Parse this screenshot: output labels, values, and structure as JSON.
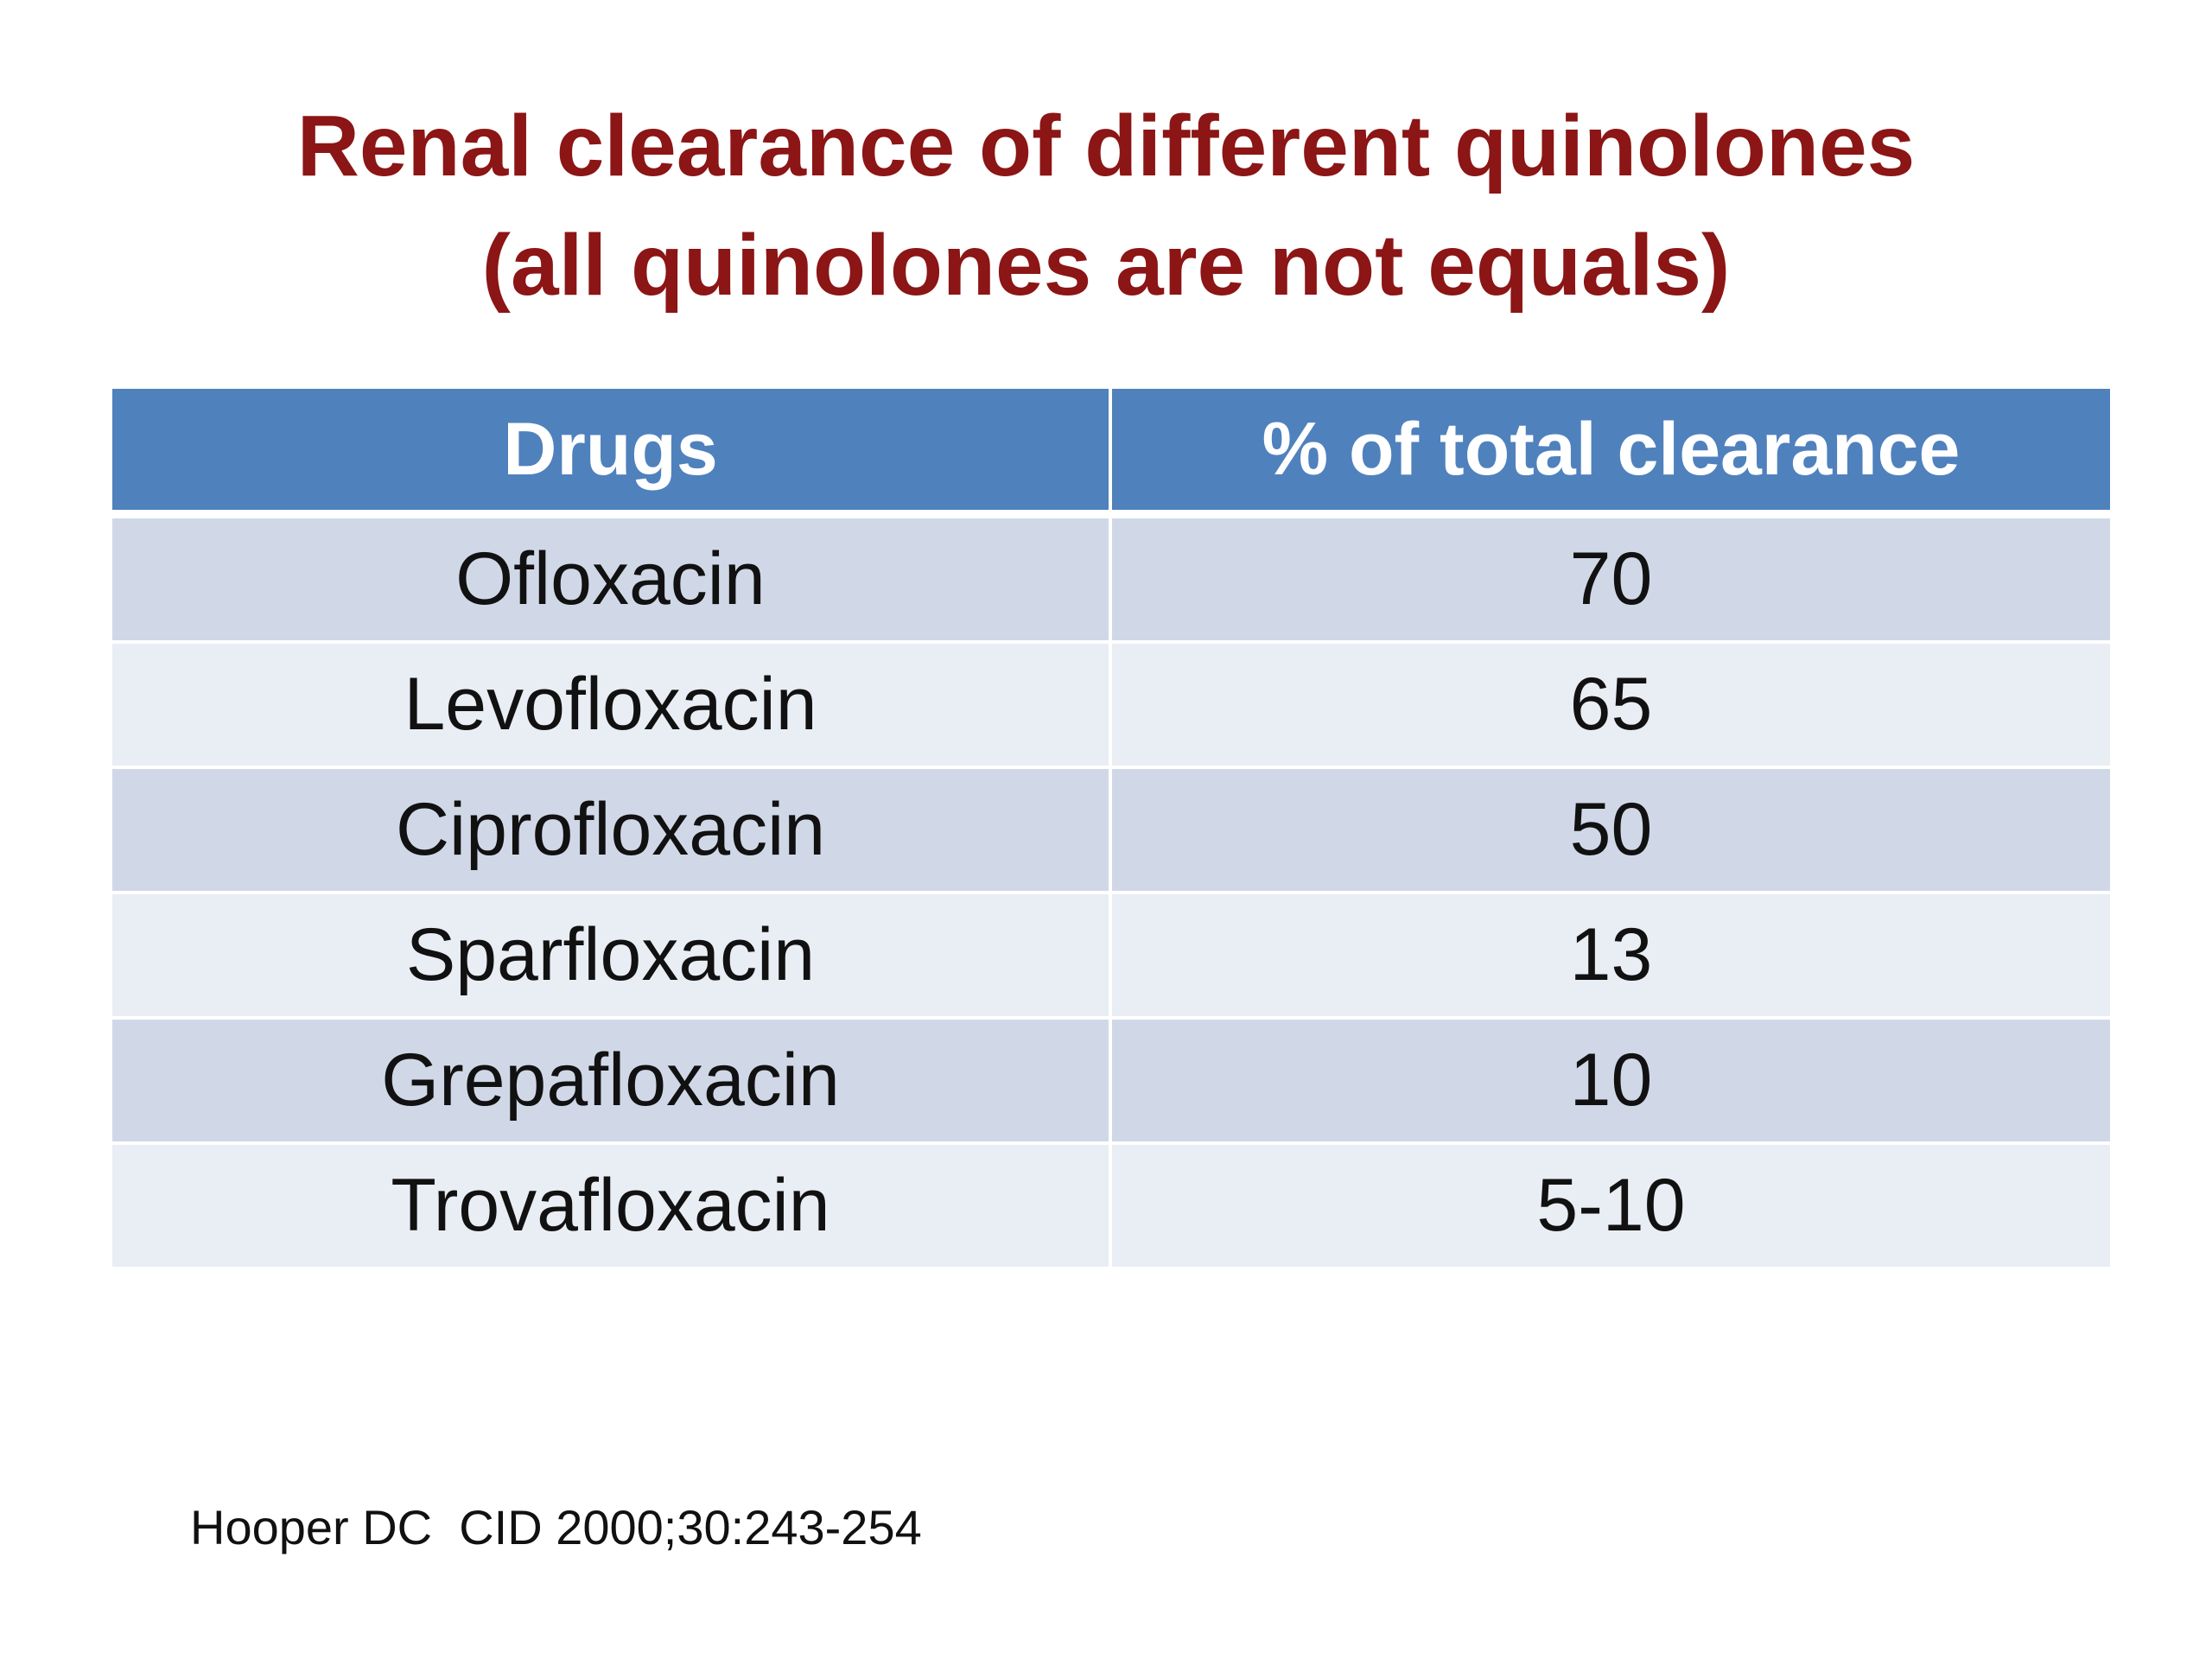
{
  "title": {
    "line1": "Renal clearance of different quinolones",
    "line2": "(all quinolones are not equals)"
  },
  "table": {
    "headers": [
      "Drugs",
      "% of total clearance"
    ],
    "rows": [
      [
        "Ofloxacin",
        "70"
      ],
      [
        "Levofloxacin",
        "65"
      ],
      [
        "Ciprofloxacin",
        "50"
      ],
      [
        "Sparfloxacin",
        "13"
      ],
      [
        "Grepafloxacin",
        "10"
      ],
      [
        "Trovafloxacin",
        "5-10"
      ]
    ]
  },
  "citation": "Hooper DC  CID 2000;30:243-254",
  "colors": {
    "title": "#8c1515",
    "header_bg": "#4f81bd",
    "row_odd_bg": "#d0d8e8",
    "row_even_bg": "#e9edf4"
  }
}
